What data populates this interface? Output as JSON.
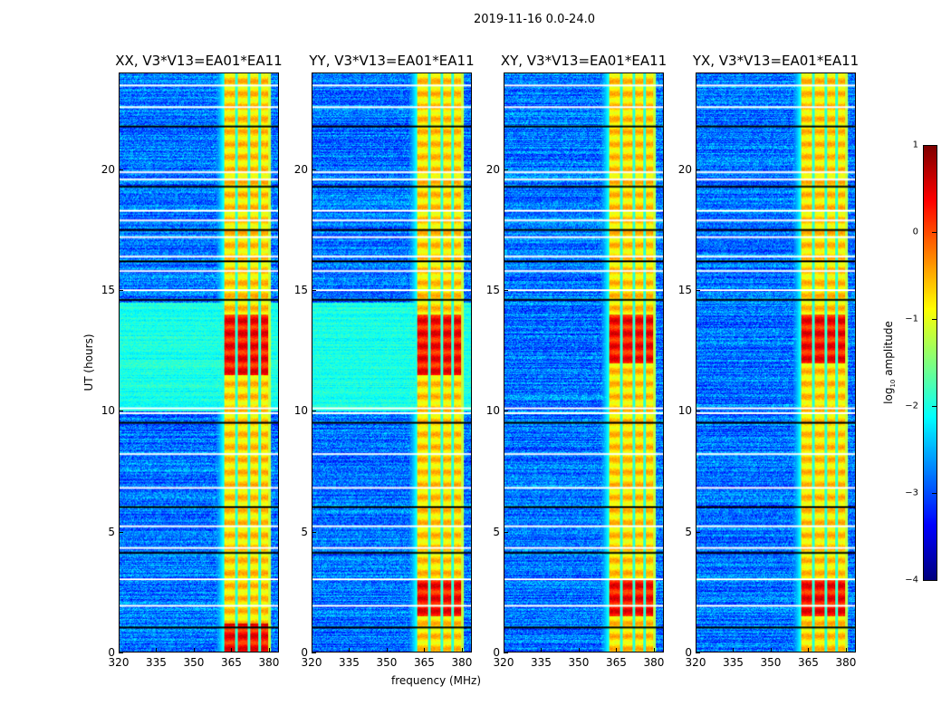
{
  "chart_data": {
    "type": "heatmap",
    "title": "2019-11-16 0.0-24.0",
    "xlabel": "frequency (MHz)",
    "ylabel": "UT (hours)",
    "xlim": [
      320,
      384
    ],
    "ylim": [
      0,
      24
    ],
    "xticks": [
      "320",
      "335",
      "350",
      "365",
      "380"
    ],
    "yticks": [
      "0",
      "5",
      "10",
      "15",
      "20"
    ],
    "panels": [
      {
        "title": "XX, V3*V13=EA01*EA11",
        "pol": "XX",
        "strong_ut": [
          [
            0,
            1.2
          ],
          [
            11.5,
            14
          ]
        ],
        "bg_bright_ut": [
          10,
          14.5
        ]
      },
      {
        "title": "YY, V3*V13=EA01*EA11",
        "pol": "YY",
        "strong_ut": [
          [
            1.5,
            3
          ],
          [
            11.5,
            14
          ]
        ],
        "bg_bright_ut": [
          10,
          14.5
        ]
      },
      {
        "title": "XY, V3*V13=EA01*EA11",
        "pol": "XY",
        "strong_ut": [
          [
            1.5,
            3
          ],
          [
            12,
            14
          ]
        ],
        "bg_bright_ut": []
      },
      {
        "title": "YX, V3*V13=EA01*EA11",
        "pol": "YX",
        "strong_ut": [
          [
            1.5,
            3
          ],
          [
            12,
            14
          ]
        ],
        "bg_bright_ut": []
      }
    ],
    "rfi_band_mhz": [
      362,
      380
    ],
    "rfi_gap_mhz": [
      367,
      372,
      376.5
    ],
    "flagged_ut": [
      1.0,
      1.9,
      3.0,
      4.1,
      4.3,
      5.2,
      6.0,
      6.8,
      8.2,
      9.5,
      9.9,
      10.1,
      14.6,
      15.0,
      15.8,
      16.2,
      16.4,
      17.2,
      17.5,
      17.9,
      18.3,
      19.3,
      19.6,
      19.9,
      21.8,
      22.6,
      23.5
    ],
    "colorbar": {
      "label": "log10 amplitude",
      "label_main": "log",
      "label_sub": "10",
      "label_rest": " amplitude",
      "range": [
        -4,
        1
      ],
      "ticks": [
        "1",
        "0",
        "−1",
        "−2",
        "−3",
        "−4"
      ],
      "colormap": "jet"
    }
  }
}
